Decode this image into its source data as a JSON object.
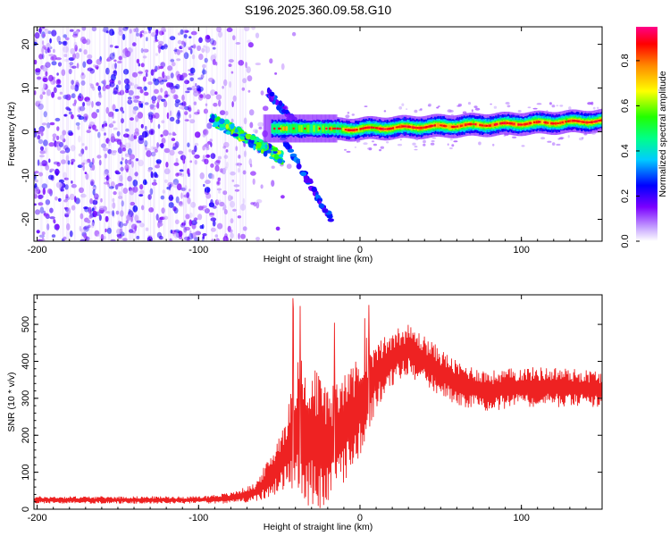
{
  "title": "S196.2025.360.09.58.G10",
  "chart_data": [
    {
      "type": "heatmap",
      "name": "spectrogram",
      "xlabel": "Height of straight line (km)",
      "ylabel": "Frequency (Hz)",
      "xlim": [
        -202,
        150
      ],
      "ylim": [
        -25,
        24
      ],
      "xticks": [
        -200,
        -100,
        0,
        100
      ],
      "yticks": [
        -20,
        -10,
        0,
        10,
        20
      ],
      "colorbar": {
        "label": "Normalized spectral amplitude",
        "range": [
          0,
          0.95
        ],
        "ticks": [
          "0.0",
          "0.2",
          "0.4",
          "0.6",
          "0.8"
        ],
        "tick_values": [
          0.0,
          0.2,
          0.4,
          0.6,
          0.8
        ]
      },
      "features": [
        {
          "segment": "main-ridge",
          "x": [
            -15,
            150
          ],
          "freq": [
            0.5,
            2.5
          ],
          "amplitude": 0.9
        },
        {
          "segment": "left-branch",
          "x": [
            -92,
            -48
          ],
          "freq": [
            3,
            -6
          ],
          "amplitude": 0.45
        },
        {
          "segment": "down-branch",
          "x": [
            -50,
            -18
          ],
          "freq": [
            0,
            -20
          ],
          "amplitude": 0.3
        },
        {
          "segment": "upper-branch",
          "x": [
            -57,
            -38
          ],
          "freq": [
            9,
            1
          ],
          "amplitude": 0.25
        },
        {
          "segment": "noise-field",
          "x": [
            -202,
            -55
          ],
          "freq": [
            -25,
            24
          ],
          "amplitude": 0.15
        }
      ]
    },
    {
      "type": "line",
      "name": "snr",
      "xlabel": "Height of straight line (km)",
      "ylabel": "SNR (10 * v/v)",
      "xlim": [
        -202,
        150
      ],
      "ylim": [
        0,
        580
      ],
      "xticks": [
        -200,
        -100,
        0,
        100
      ],
      "yticks": [
        0,
        100,
        200,
        300,
        400,
        500
      ],
      "color": "#ee2222",
      "envelope": {
        "x": [
          -202,
          -150,
          -100,
          -80,
          -65,
          -55,
          -45,
          -38,
          -30,
          -20,
          -10,
          0,
          10,
          20,
          30,
          40,
          60,
          80,
          100,
          120,
          150
        ],
        "mean": [
          25,
          25,
          25,
          30,
          45,
          90,
          160,
          230,
          200,
          160,
          220,
          280,
          360,
          410,
          430,
          400,
          340,
          320,
          330,
          330,
          325
        ],
        "amp": [
          10,
          10,
          10,
          15,
          25,
          60,
          110,
          200,
          200,
          160,
          150,
          140,
          90,
          80,
          70,
          70,
          60,
          55,
          55,
          55,
          50
        ]
      }
    }
  ]
}
